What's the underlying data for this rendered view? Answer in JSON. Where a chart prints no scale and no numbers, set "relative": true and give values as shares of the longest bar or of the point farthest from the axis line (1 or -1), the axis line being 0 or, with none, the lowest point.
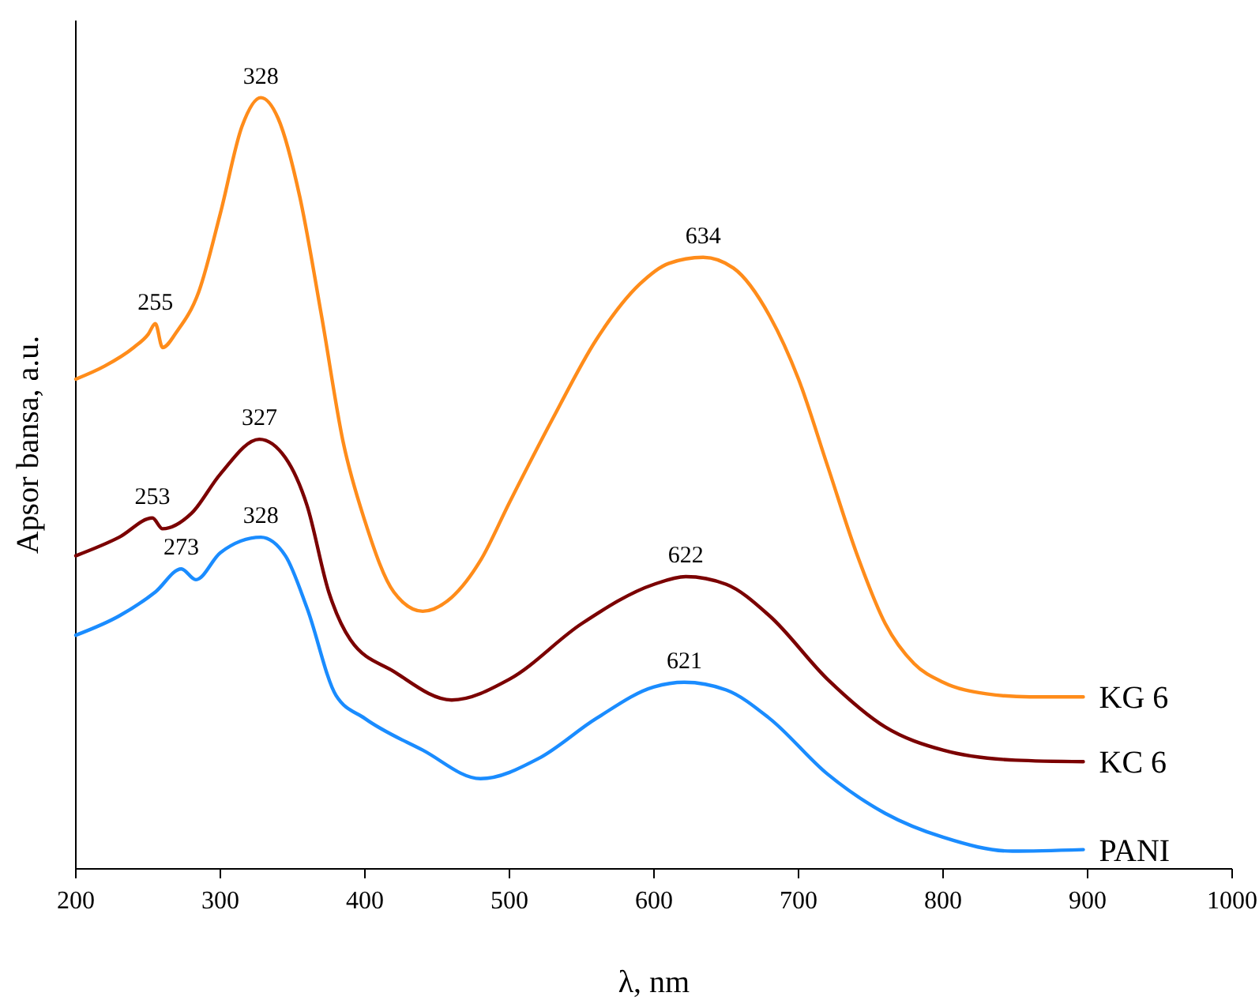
{
  "chart_data": {
    "type": "line",
    "xlabel": "λ, nm",
    "ylabel": "Apsor bansa, a.u.",
    "relative": true,
    "xlim": [
      200,
      1000
    ],
    "xticks": [
      200,
      300,
      400,
      500,
      600,
      700,
      800,
      900,
      1000
    ],
    "grid": false,
    "marker": "none",
    "line_style": "solid",
    "series": [
      {
        "name": "KG 6",
        "color": "#ff8c1a",
        "x": [
          200,
          220,
          240,
          250,
          255,
          260,
          270,
          285,
          300,
          315,
          328,
          340,
          355,
          370,
          385,
          400,
          420,
          440,
          460,
          480,
          500,
          530,
          560,
          590,
          610,
          634,
          655,
          680,
          700,
          720,
          740,
          760,
          780,
          800,
          830,
          860,
          897
        ],
        "values": [
          0.635,
          0.652,
          0.676,
          0.693,
          0.707,
          0.676,
          0.697,
          0.748,
          0.85,
          0.963,
          1.0,
          0.973,
          0.871,
          0.717,
          0.553,
          0.451,
          0.359,
          0.334,
          0.352,
          0.4,
          0.475,
          0.584,
          0.686,
          0.758,
          0.785,
          0.793,
          0.779,
          0.717,
          0.635,
          0.523,
          0.41,
          0.318,
          0.266,
          0.242,
          0.227,
          0.223,
          0.223
        ]
      },
      {
        "name": "KC 6",
        "color": "#7b0000",
        "x": [
          200,
          230,
          253,
          260,
          280,
          300,
          327,
          345,
          360,
          375,
          390,
          420,
          460,
          500,
          550,
          600,
          622,
          650,
          680,
          720,
          760,
          800,
          850,
          897
        ],
        "values": [
          0.406,
          0.43,
          0.455,
          0.441,
          0.461,
          0.512,
          0.557,
          0.533,
          0.471,
          0.359,
          0.297,
          0.256,
          0.219,
          0.246,
          0.318,
          0.369,
          0.379,
          0.369,
          0.328,
          0.246,
          0.184,
          0.154,
          0.141,
          0.139
        ]
      },
      {
        "name": "PANI",
        "color": "#1a8cff",
        "x": [
          200,
          230,
          255,
          273,
          283,
          300,
          328,
          345,
          360,
          380,
          400,
          440,
          480,
          520,
          560,
          600,
          621,
          650,
          680,
          720,
          760,
          800,
          848,
          897
        ],
        "values": [
          0.303,
          0.328,
          0.359,
          0.389,
          0.375,
          0.41,
          0.43,
          0.406,
          0.338,
          0.225,
          0.195,
          0.154,
          0.117,
          0.143,
          0.195,
          0.236,
          0.242,
          0.232,
          0.195,
          0.123,
          0.072,
          0.041,
          0.023,
          0.025
        ]
      }
    ],
    "annotations": [
      {
        "text": "328",
        "x": 328,
        "y": 1.0
      },
      {
        "text": "255",
        "x": 255,
        "y": 0.707
      },
      {
        "text": "634",
        "x": 634,
        "y": 0.793
      },
      {
        "text": "327",
        "x": 327,
        "y": 0.557
      },
      {
        "text": "253",
        "x": 253,
        "y": 0.455
      },
      {
        "text": "622",
        "x": 622,
        "y": 0.379
      },
      {
        "text": "328",
        "x": 328,
        "y": 0.43
      },
      {
        "text": "273",
        "x": 273,
        "y": 0.389
      },
      {
        "text": "621",
        "x": 621,
        "y": 0.242
      }
    ]
  }
}
